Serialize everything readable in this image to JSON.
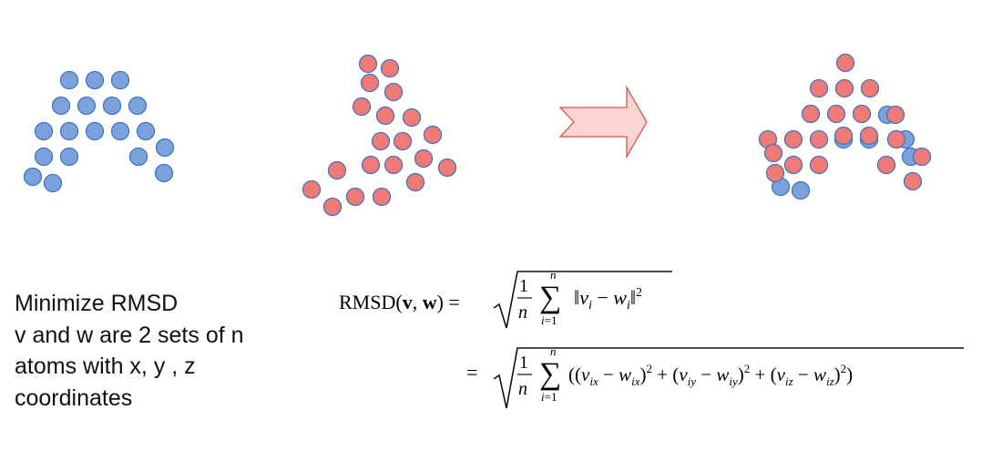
{
  "colors": {
    "blue": "#7aa3dc",
    "red": "#f07b76",
    "stroke": "#4472c4",
    "arrow_fill": "#fcd5d2",
    "arrow_stroke": "#e0524b"
  },
  "caption": {
    "line1": "Minimize RMSD",
    "line2": "v and w are 2 sets of n",
    "line3": "atoms with x, y , z",
    "line4": "coordinates"
  },
  "formula": {
    "lhs": "RMSD(v, w) =",
    "frac_num": "1",
    "frac_den": "n",
    "sum_top": "n",
    "sum_bottom": "i=1",
    "line1_body": "‖v_i − w_i‖²",
    "eq2": "=",
    "line2_body": "((v_ix − w_ix)² + (v_iy − w_iy)² + (v_iz − w_iz)²)"
  },
  "clusters": {
    "v_set": "blue atoms",
    "w_set": "red atoms",
    "arrow": "right-arrow",
    "superposed": "aligned atoms"
  }
}
